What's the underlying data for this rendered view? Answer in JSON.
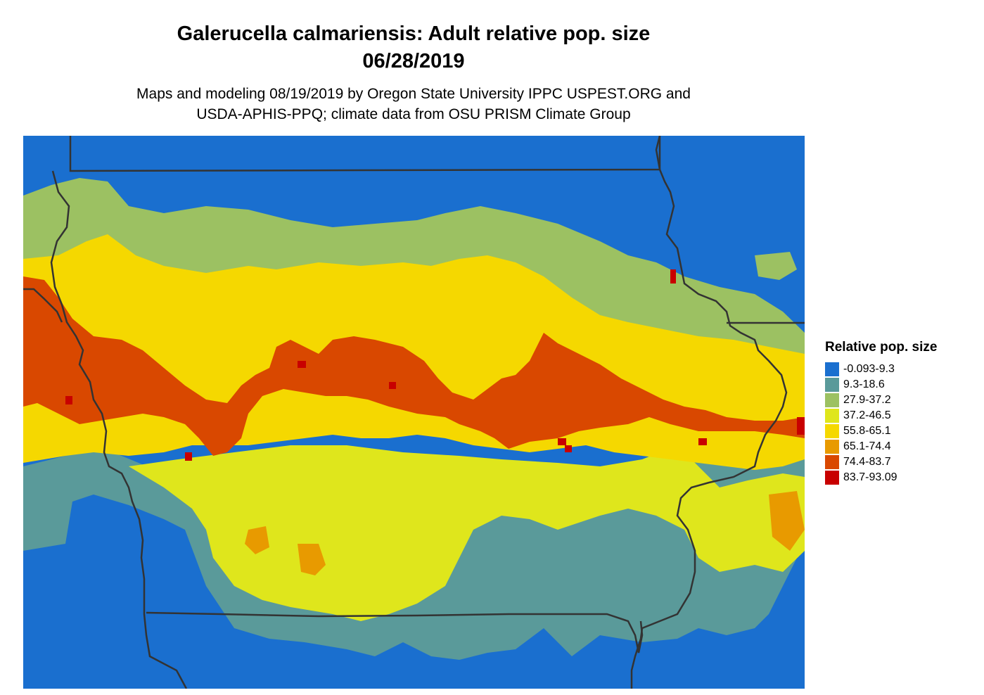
{
  "title_line1": "Galerucella calmariensis: Adult relative pop. size",
  "title_line2": "06/28/2019",
  "subtitle_line1": "Maps and modeling 08/19/2019 by Oregon State University IPPC USPEST.ORG and",
  "subtitle_line2": "USDA-APHIS-PPQ; climate data from OSU PRISM Climate Group",
  "legend": {
    "title": "Relative pop. size",
    "items": [
      {
        "label": "-0.093-9.3",
        "color": "#1a6fcf"
      },
      {
        "label": "9.3-18.6",
        "color": "#5a9a9a"
      },
      {
        "label": "27.9-37.2",
        "color": "#9cc162"
      },
      {
        "label": "37.2-46.5",
        "color": "#dfe61c"
      },
      {
        "label": "55.8-65.1",
        "color": "#f5d800"
      },
      {
        "label": "65.1-74.4",
        "color": "#e89a00"
      },
      {
        "label": "74.4-83.7",
        "color": "#d94800"
      },
      {
        "label": "83.7-93.09",
        "color": "#c80000"
      }
    ]
  },
  "map": {
    "region": "Iowa and surrounding states",
    "border_color": "#333333"
  }
}
